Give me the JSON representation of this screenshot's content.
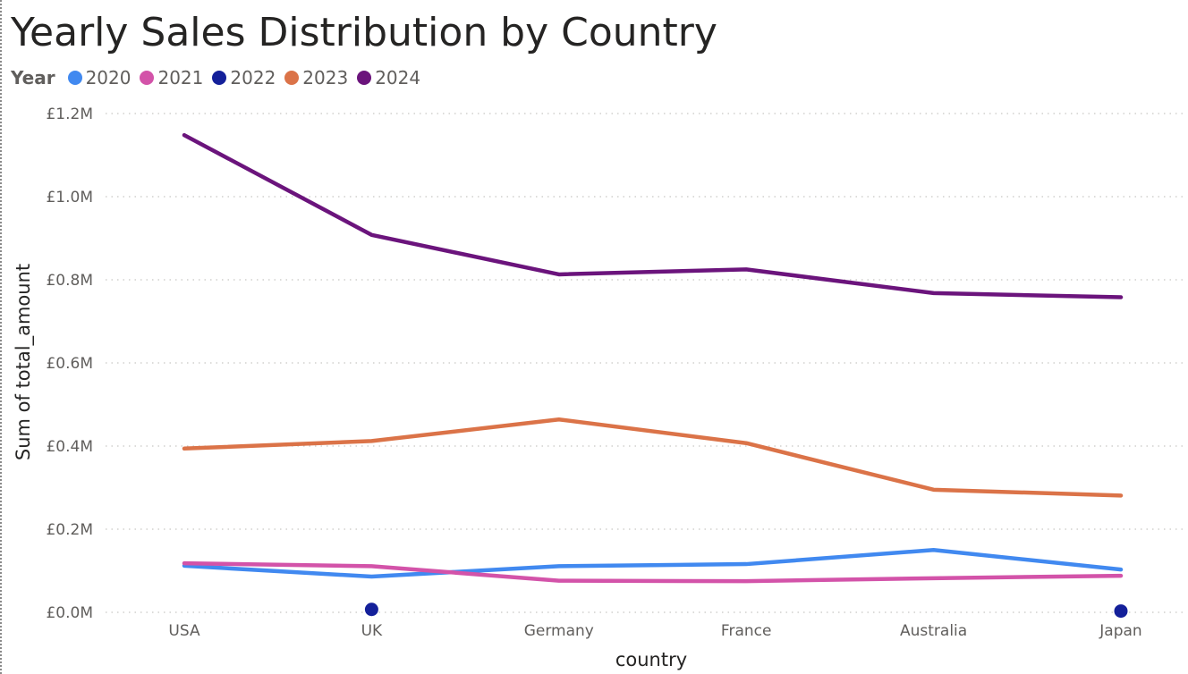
{
  "chart_data": {
    "type": "line",
    "title": "Yearly Sales Distribution by Country",
    "legend_title": "Year",
    "legend_position": "top-left",
    "xlabel": "country",
    "ylabel": "Sum of total_amount",
    "categories": [
      "USA",
      "UK",
      "Germany",
      "France",
      "Australia",
      "Japan"
    ],
    "ylim": [
      0,
      1.2
    ],
    "yticks": [
      0,
      0.2,
      0.4,
      0.6,
      0.8,
      1.0,
      1.2
    ],
    "ytick_labels": [
      "£0.0M",
      "£0.2M",
      "£0.4M",
      "£0.6M",
      "£0.8M",
      "£1.0M",
      "£1.2M"
    ],
    "grid": true,
    "series": [
      {
        "name": "2020",
        "color": "#4189f0",
        "values": [
          0.112,
          0.086,
          0.111,
          0.116,
          0.15,
          0.103
        ]
      },
      {
        "name": "2021",
        "color": "#d353a9",
        "values": [
          0.118,
          0.111,
          0.076,
          0.075,
          0.082,
          0.088
        ]
      },
      {
        "name": "2022",
        "color": "#14209a",
        "values": [
          null,
          0.007,
          null,
          null,
          null,
          0.003
        ]
      },
      {
        "name": "2023",
        "color": "#db7348",
        "values": [
          0.394,
          0.412,
          0.464,
          0.407,
          0.295,
          0.281
        ]
      },
      {
        "name": "2024",
        "color": "#6b147c",
        "values": [
          1.148,
          0.908,
          0.813,
          0.825,
          0.768,
          0.758
        ]
      }
    ]
  }
}
